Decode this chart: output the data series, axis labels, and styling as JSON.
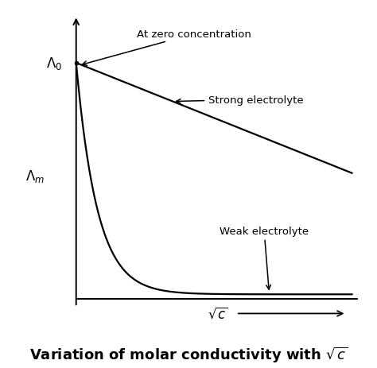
{
  "background_color": "#ffffff",
  "title": "Variation of molar conductivity with $\\sqrt{c}$",
  "title_fontsize": 13,
  "title_fontweight": "bold",
  "lambda0_label": "$\\Lambda_0$",
  "lambdam_label": "$\\Lambda_m$",
  "sqrtc_label": "$\\sqrt{c}$",
  "at_zero_label": "At zero concentration",
  "strong_label": "Strong electrolyte",
  "weak_label": "Weak electrolyte",
  "curve_color": "#000000",
  "annotation_color": "#000000",
  "arrow_color": "#000000",
  "strong_y0": 9.0,
  "strong_slope": 0.42,
  "weak_decay": 1.3,
  "weak_floor": 0.18,
  "xlim_min": -0.3,
  "xlim_max": 10.5,
  "ylim_min": -0.8,
  "ylim_max": 11.0
}
